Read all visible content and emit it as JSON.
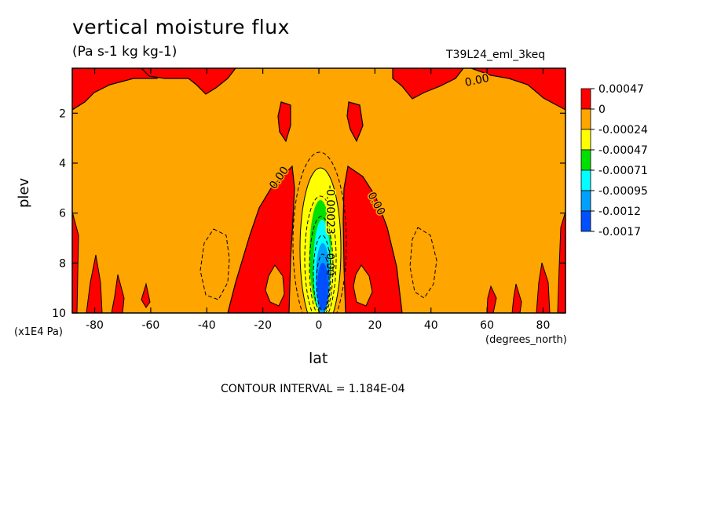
{
  "chart_data": {
    "type": "heatmap",
    "title": "vertical moisture flux",
    "subtitle": "(Pa s-1 kg kg-1)",
    "run_label": "T39L24_eml_3keq",
    "xlabel": "lat",
    "xlabel_units": "(degrees_north)",
    "ylabel": "plev",
    "ylabel_units": "(x1E4 Pa)",
    "xlim": [
      -88,
      88
    ],
    "ylim": [
      10,
      0.2
    ],
    "xticks": [
      -80,
      -60,
      -40,
      -20,
      0,
      20,
      40,
      60,
      80
    ],
    "yticks": [
      2,
      4,
      6,
      8,
      10
    ],
    "contour_interval_text": "CONTOUR INTERVAL = 1.184E-04",
    "contour_labels": [
      "0.00",
      "0.00",
      "0.00",
      "-0.00023",
      "-0.00"
    ],
    "colorbar": {
      "levels": [
        "0.00047",
        "0",
        "-0.00024",
        "-0.00047",
        "-0.00071",
        "-0.00095",
        "-0.0012",
        "-0.0017"
      ],
      "colors": [
        "#ff0000",
        "#ffa500",
        "#ffff00",
        "#00e000",
        "#00ffff",
        "#00a0ff",
        "#0050ff"
      ]
    }
  }
}
